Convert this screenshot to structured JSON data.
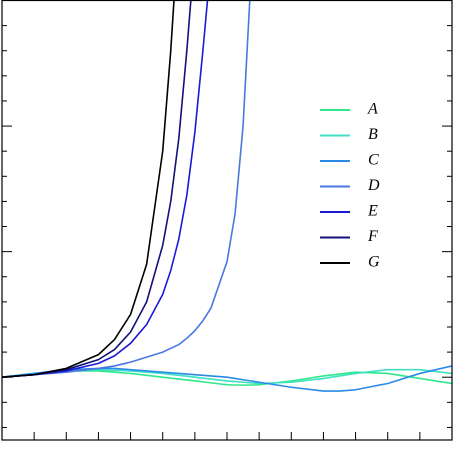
{
  "chart_data": {
    "type": "line",
    "x": [
      0,
      1,
      2,
      3,
      3.5,
      4,
      4.5,
      5,
      5.25,
      5.5,
      5.75,
      6,
      6.25,
      6.5,
      7,
      7.25,
      7.5,
      7.75,
      8,
      9,
      10,
      10.5,
      11,
      12,
      13,
      14
    ],
    "series": [
      {
        "name": "A",
        "color": "#2ee88a",
        "values": [
          0,
          0.03,
          0.05,
          0.05,
          0.04,
          0.03,
          0.015,
          0,
          -0.008,
          -0.015,
          -0.022,
          -0.03,
          -0.037,
          -0.045,
          -0.06,
          -0.062,
          -0.063,
          -0.062,
          -0.06,
          -0.03,
          0.01,
          0.025,
          0.04,
          0.03,
          -0.01,
          -0.05
        ]
      },
      {
        "name": "B",
        "color": "#3ee0c4",
        "values": [
          0,
          0.03,
          0.05,
          0.06,
          0.055,
          0.05,
          0.04,
          0.03,
          0.022,
          0.015,
          0.008,
          0,
          -0.008,
          -0.015,
          -0.03,
          -0.035,
          -0.04,
          -0.045,
          -0.05,
          -0.04,
          -0.01,
          0.01,
          0.03,
          0.06,
          0.06,
          0.03
        ]
      },
      {
        "name": "C",
        "color": "#2a8ae8",
        "values": [
          0,
          0.03,
          0.06,
          0.07,
          0.07,
          0.06,
          0.05,
          0.04,
          0.035,
          0.03,
          0.025,
          0.02,
          0.015,
          0.01,
          0,
          -0.01,
          -0.02,
          -0.03,
          -0.04,
          -0.08,
          -0.11,
          -0.11,
          -0.1,
          -0.05,
          0.03,
          0.09
        ]
      },
      {
        "name": "D",
        "color": "#4a78e0",
        "values": [
          0,
          0.02,
          0.04,
          0.07,
          0.09,
          0.12,
          0.16,
          0.2,
          0.23,
          0.26,
          0.31,
          0.37,
          0.45,
          0.55,
          0.92,
          1.3,
          2.0,
          3.2,
          null,
          null,
          null,
          null,
          null,
          null,
          null,
          null
        ]
      },
      {
        "name": "E",
        "color": "#1a1ad8",
        "values": [
          0,
          0.02,
          0.05,
          0.11,
          0.17,
          0.27,
          0.42,
          0.66,
          0.85,
          1.1,
          1.45,
          1.95,
          2.6,
          3.3,
          null,
          null,
          null,
          null,
          null,
          null,
          null,
          null,
          null,
          null,
          null,
          null
        ]
      },
      {
        "name": "F",
        "color": "#12127a",
        "values": [
          0,
          0.02,
          0.06,
          0.14,
          0.22,
          0.36,
          0.6,
          1.05,
          1.4,
          1.9,
          2.6,
          3.4,
          null,
          null,
          null,
          null,
          null,
          null,
          null,
          null,
          null,
          null,
          null,
          null,
          null,
          null
        ]
      },
      {
        "name": "G",
        "color": "#000000",
        "values": [
          0,
          0.02,
          0.07,
          0.18,
          0.3,
          0.5,
          0.9,
          1.8,
          2.6,
          3.6,
          null,
          null,
          null,
          null,
          null,
          null,
          null,
          null,
          null,
          null,
          null,
          null,
          null,
          null,
          null,
          null
        ]
      }
    ],
    "xlim": [
      0,
      14
    ],
    "ylim": [
      -0.5,
      3.0
    ],
    "xticks": [
      0,
      1,
      2,
      3,
      4,
      5,
      6,
      7,
      8,
      9,
      10,
      11,
      12,
      13,
      14
    ],
    "yticks": [
      -0.4,
      -0.2,
      0,
      0.2,
      0.4,
      0.6,
      0.8,
      1,
      1.2,
      1.4,
      1.6,
      1.8,
      2,
      2.2,
      2.4,
      2.6,
      2.8,
      3
    ],
    "legend": "right"
  }
}
